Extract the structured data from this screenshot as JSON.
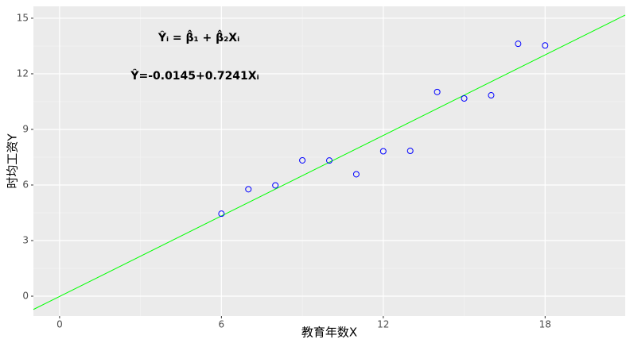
{
  "chart_data": {
    "type": "scatter",
    "x_label": "教育年数X",
    "y_label": "时均工资Y",
    "annotations": [
      "Ŷᵢ = β̂₁ + β̂₂Xᵢ",
      "Ŷ=-0.0145+0.7241Xᵢ"
    ],
    "x": [
      6,
      7,
      8,
      9,
      10,
      11,
      12,
      13,
      14,
      15,
      16,
      17,
      18
    ],
    "series": [
      {
        "color": "#0000ff",
        "values": [
          4.45,
          5.77,
          5.98,
          7.33,
          7.32,
          6.58,
          7.82,
          7.84,
          11.02,
          10.67,
          10.84,
          13.62,
          13.53
        ]
      }
    ],
    "fit": {
      "intercept": -0.0145,
      "slope": 0.7241,
      "color": "#00ff00"
    },
    "xlim": [
      -0.97,
      20.97
    ],
    "ylim": [
      -1.07,
      15.64
    ],
    "xticks": [
      0,
      6,
      12,
      18
    ],
    "yticks": [
      0,
      3,
      6,
      9,
      12,
      15
    ],
    "grid": true
  }
}
